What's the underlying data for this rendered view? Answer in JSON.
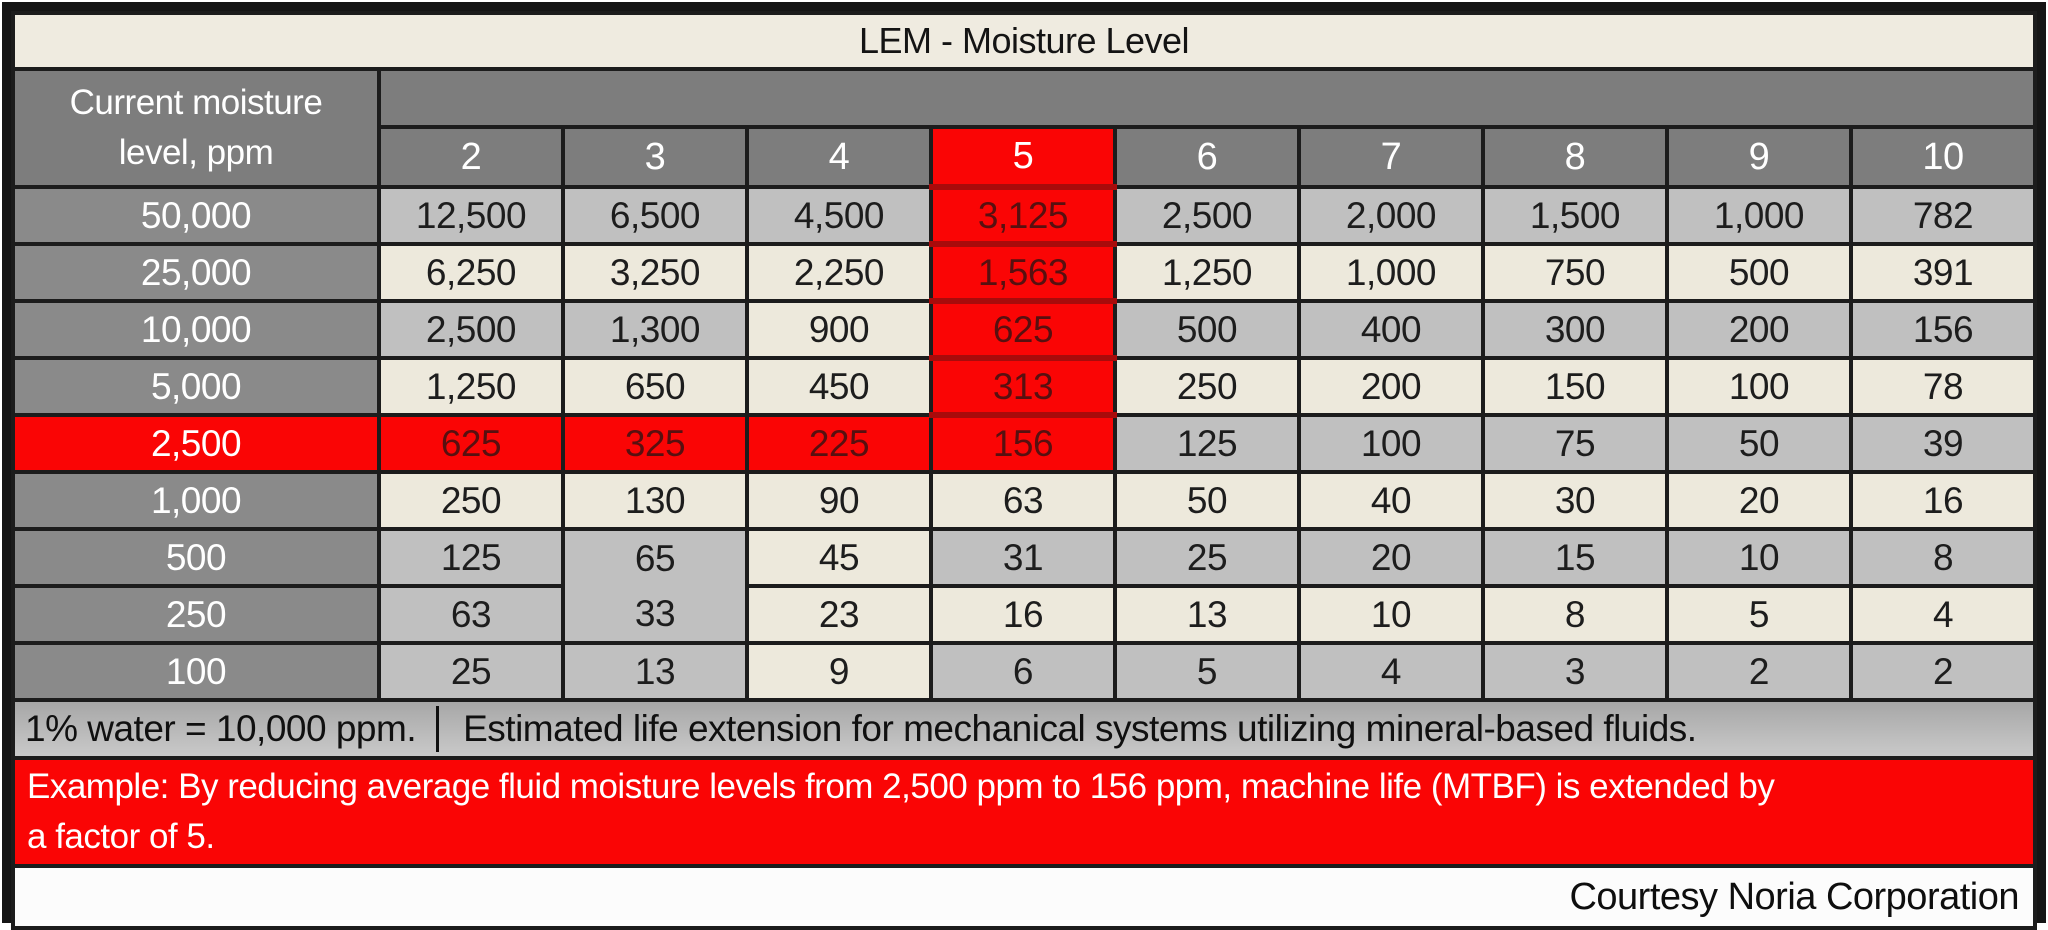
{
  "title": "LEM - Moisture Level",
  "corner": {
    "line1": "Current moisture",
    "line2": "level, ppm",
    "bg": "header"
  },
  "band": {
    "bg": "header"
  },
  "columns": [
    {
      "label": "2",
      "bg": "header"
    },
    {
      "label": "3",
      "bg": "header"
    },
    {
      "label": "4",
      "bg": "header"
    },
    {
      "label": "5",
      "bg": "red"
    },
    {
      "label": "6",
      "bg": "header"
    },
    {
      "label": "7",
      "bg": "header"
    },
    {
      "label": "8",
      "bg": "header"
    },
    {
      "label": "9",
      "bg": "header"
    },
    {
      "label": "10",
      "bg": "header"
    }
  ],
  "rows": [
    {
      "label": "50,000",
      "label_bg": "row_header",
      "cells": [
        {
          "v": "12,500",
          "bg": "silver"
        },
        {
          "v": "6,500",
          "bg": "silver"
        },
        {
          "v": "4,500",
          "bg": "silver"
        },
        {
          "v": "3,125",
          "bg": "red"
        },
        {
          "v": "2,500",
          "bg": "silver"
        },
        {
          "v": "2,000",
          "bg": "silver"
        },
        {
          "v": "1,500",
          "bg": "silver"
        },
        {
          "v": "1,000",
          "bg": "silver"
        },
        {
          "v": "782",
          "bg": "silver"
        }
      ]
    },
    {
      "label": "25,000",
      "label_bg": "row_header",
      "cells": [
        {
          "v": "6,250",
          "bg": "cream"
        },
        {
          "v": "3,250",
          "bg": "cream"
        },
        {
          "v": "2,250",
          "bg": "cream"
        },
        {
          "v": "1,563",
          "bg": "red"
        },
        {
          "v": "1,250",
          "bg": "cream"
        },
        {
          "v": "1,000",
          "bg": "cream"
        },
        {
          "v": "750",
          "bg": "cream"
        },
        {
          "v": "500",
          "bg": "cream"
        },
        {
          "v": "391",
          "bg": "cream"
        }
      ]
    },
    {
      "label": "10,000",
      "label_bg": "row_header",
      "cells": [
        {
          "v": "2,500",
          "bg": "silver"
        },
        {
          "v": "1,300",
          "bg": "silver"
        },
        {
          "v": "900",
          "bg": "cream"
        },
        {
          "v": "625",
          "bg": "red"
        },
        {
          "v": "500",
          "bg": "silver"
        },
        {
          "v": "400",
          "bg": "silver"
        },
        {
          "v": "300",
          "bg": "silver"
        },
        {
          "v": "200",
          "bg": "silver"
        },
        {
          "v": "156",
          "bg": "silver"
        }
      ]
    },
    {
      "label": "5,000",
      "label_bg": "row_header",
      "cells": [
        {
          "v": "1,250",
          "bg": "cream"
        },
        {
          "v": "650",
          "bg": "cream"
        },
        {
          "v": "450",
          "bg": "cream"
        },
        {
          "v": "313",
          "bg": "red"
        },
        {
          "v": "250",
          "bg": "cream"
        },
        {
          "v": "200",
          "bg": "cream"
        },
        {
          "v": "150",
          "bg": "cream"
        },
        {
          "v": "100",
          "bg": "cream"
        },
        {
          "v": "78",
          "bg": "cream"
        }
      ]
    },
    {
      "label": "2,500",
      "label_bg": "red",
      "cells": [
        {
          "v": "625",
          "bg": "red"
        },
        {
          "v": "325",
          "bg": "red"
        },
        {
          "v": "225",
          "bg": "red"
        },
        {
          "v": "156",
          "bg": "red"
        },
        {
          "v": "125",
          "bg": "silver"
        },
        {
          "v": "100",
          "bg": "silver"
        },
        {
          "v": "75",
          "bg": "silver"
        },
        {
          "v": "50",
          "bg": "silver"
        },
        {
          "v": "39",
          "bg": "silver"
        }
      ]
    },
    {
      "label": "1,000",
      "label_bg": "row_header",
      "cells": [
        {
          "v": "250",
          "bg": "cream"
        },
        {
          "v": "130",
          "bg": "cream"
        },
        {
          "v": "90",
          "bg": "cream"
        },
        {
          "v": "63",
          "bg": "cream"
        },
        {
          "v": "50",
          "bg": "cream"
        },
        {
          "v": "40",
          "bg": "cream"
        },
        {
          "v": "30",
          "bg": "cream"
        },
        {
          "v": "20",
          "bg": "cream"
        },
        {
          "v": "16",
          "bg": "cream"
        }
      ]
    },
    {
      "label": "500",
      "label_bg": "row_header",
      "cells": [
        {
          "v": "125",
          "bg": "silver"
        },
        {
          "v": "65",
          "bg": "silver"
        },
        {
          "v": "45",
          "bg": "cream"
        },
        {
          "v": "31",
          "bg": "silver"
        },
        {
          "v": "25",
          "bg": "silver"
        },
        {
          "v": "20",
          "bg": "silver"
        },
        {
          "v": "15",
          "bg": "silver"
        },
        {
          "v": "10",
          "bg": "silver"
        },
        {
          "v": "8",
          "bg": "silver"
        }
      ]
    },
    {
      "label": "250",
      "label_bg": "row_header",
      "cells": [
        {
          "v": "63",
          "bg": "silver"
        },
        {
          "v": "33",
          "bg": "silver"
        },
        {
          "v": "23",
          "bg": "cream"
        },
        {
          "v": "16",
          "bg": "cream"
        },
        {
          "v": "13",
          "bg": "cream"
        },
        {
          "v": "10",
          "bg": "cream"
        },
        {
          "v": "8",
          "bg": "cream"
        },
        {
          "v": "5",
          "bg": "cream"
        },
        {
          "v": "4",
          "bg": "cream"
        }
      ]
    },
    {
      "label": "100",
      "label_bg": "row_header",
      "cells": [
        {
          "v": "25",
          "bg": "silver"
        },
        {
          "v": "13",
          "bg": "silver"
        },
        {
          "v": "9",
          "bg": "cream"
        },
        {
          "v": "6",
          "bg": "silver"
        },
        {
          "v": "5",
          "bg": "silver"
        },
        {
          "v": "4",
          "bg": "silver"
        },
        {
          "v": "3",
          "bg": "silver"
        },
        {
          "v": "2",
          "bg": "silver"
        },
        {
          "v": "2",
          "bg": "silver"
        }
      ]
    }
  ],
  "footer": {
    "note_left": "1% water = 10,000 ppm.",
    "divider": "|",
    "note_right": "Estimated life extension for mechanical systems utilizing mineral-based fluids.",
    "example_line1": "Example: By reducing average fluid moisture levels from 2,500 ppm to 156 ppm, machine life (MTBF) is extended by",
    "example_line2": "a factor of 5.",
    "courtesy": "Courtesy Noria Corporation"
  },
  "colors": {
    "header": "#7D7D7D",
    "row_header": "#8A8A8A",
    "silver": "#C0C0C0",
    "cream": "#EDE9DC",
    "red": "#FA0505",
    "title_bg": "#EFEBE0",
    "border": "#1C1C1C",
    "red_cell_text": "#571010",
    "red_column_gridline": "#A80B0B",
    "note_band_top": "#A7A7A7",
    "note_band_bottom": "#C9C9C9",
    "example_text": "#FFFFFF"
  },
  "chart_data": {
    "type": "table",
    "title": "LEM - Moisture Level",
    "row_header_label": "Current moisture level, ppm",
    "column_headers": [
      2,
      3,
      4,
      5,
      6,
      7,
      8,
      9,
      10
    ],
    "row_headers": [
      50000,
      25000,
      10000,
      5000,
      2500,
      1000,
      500,
      250,
      100
    ],
    "values": [
      [
        12500,
        6500,
        4500,
        3125,
        2500,
        2000,
        1500,
        1000,
        782
      ],
      [
        6250,
        3250,
        2250,
        1563,
        1250,
        1000,
        750,
        500,
        391
      ],
      [
        2500,
        1300,
        900,
        625,
        500,
        400,
        300,
        200,
        156
      ],
      [
        1250,
        650,
        450,
        313,
        250,
        200,
        150,
        100,
        78
      ],
      [
        625,
        325,
        225,
        156,
        125,
        100,
        75,
        50,
        39
      ],
      [
        250,
        130,
        90,
        63,
        50,
        40,
        30,
        20,
        16
      ],
      [
        125,
        65,
        45,
        31,
        25,
        20,
        15,
        10,
        8
      ],
      [
        63,
        33,
        23,
        16,
        13,
        10,
        8,
        5,
        4
      ],
      [
        25,
        13,
        9,
        6,
        5,
        4,
        3,
        2,
        2
      ]
    ],
    "highlighted_column": 5,
    "highlighted_row": 2500,
    "notes": [
      "1% water = 10,000 ppm.",
      "Estimated life extension for mechanical systems utilizing mineral-based fluids.",
      "Example: By reducing average fluid moisture levels from 2,500 ppm to 156 ppm, machine life (MTBF) is extended by a factor of 5.",
      "Courtesy Noria Corporation"
    ]
  }
}
